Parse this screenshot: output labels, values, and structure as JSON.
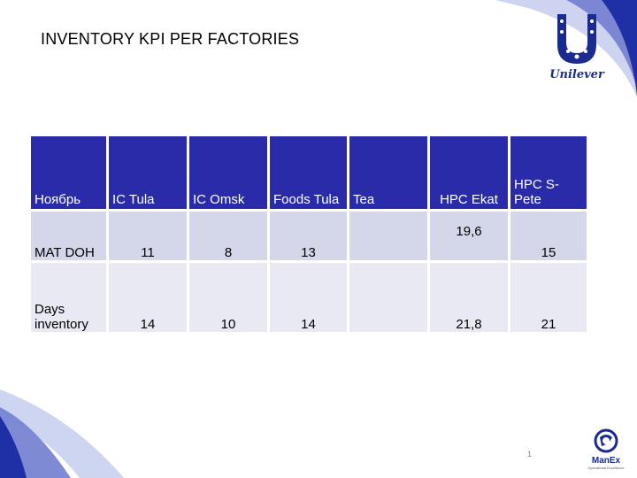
{
  "slide": {
    "title": "INVENTORY KPI PER FACTORIES"
  },
  "brand": {
    "logo_text": "Unilever",
    "partner_logo_text": "ManEx",
    "partner_logo_sub": "Operational Excellence",
    "primary_color": "#2a2ba8",
    "row1_color": "#d4d7e9",
    "row2_color": "#e8e9f2"
  },
  "table": {
    "headers": [
      "Ноябрь",
      "IC Tula",
      "IC Omsk",
      "Foods Tula",
      "Tea",
      "HPC Ekat",
      "HPC S-Pete"
    ],
    "rows": [
      {
        "label": "MAT DOH",
        "values": [
          "11",
          "8",
          "13",
          "",
          "19,6",
          "15"
        ]
      },
      {
        "label": "Days inventory",
        "values": [
          "14",
          "10",
          "14",
          "",
          "21,8",
          "21"
        ]
      }
    ]
  },
  "footer": {
    "page_number": "1"
  }
}
